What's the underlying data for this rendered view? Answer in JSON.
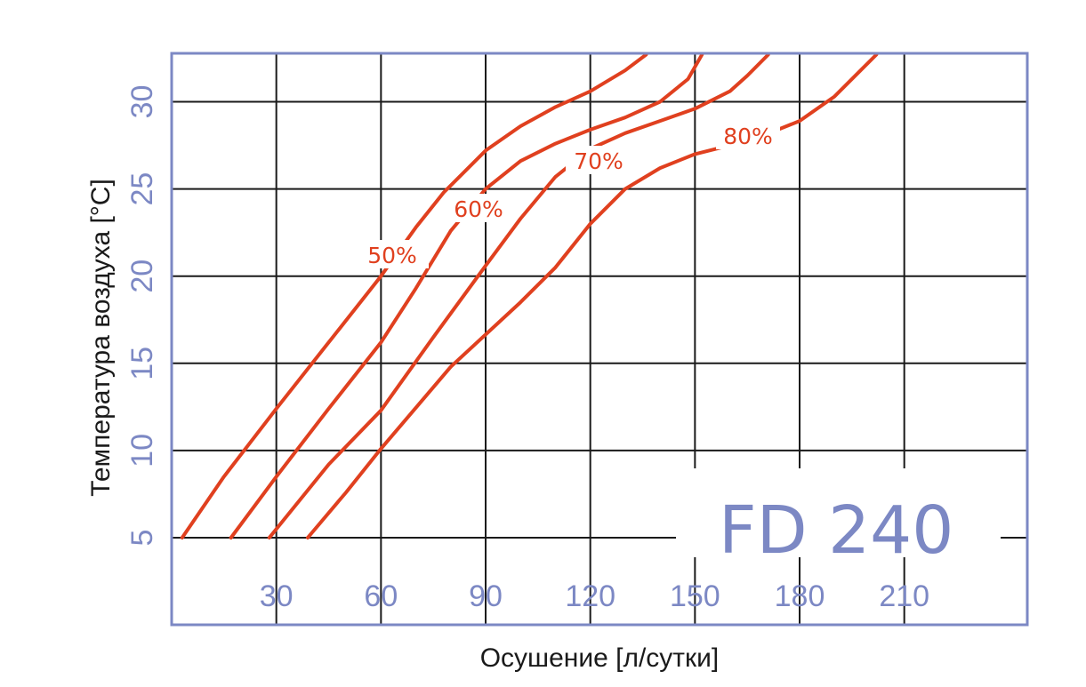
{
  "chart_data": {
    "type": "line",
    "title": "FD 240",
    "xlabel": "Осушение [л/сутки]",
    "ylabel": "Температура воздуха [°C]",
    "xlim": [
      0,
      240
    ],
    "ylim": [
      0,
      33
    ],
    "x_ticks": [
      30,
      60,
      90,
      120,
      150,
      180,
      210
    ],
    "y_ticks": [
      5,
      10,
      15,
      20,
      25,
      30
    ],
    "grid": true,
    "colors": {
      "frame": "#7c88c4",
      "curves": "#e0401f",
      "grid": "#1a1a1a"
    },
    "series": [
      {
        "name": "50%",
        "points": [
          [
            3,
            5
          ],
          [
            15,
            8.5
          ],
          [
            30,
            12.4
          ],
          [
            45,
            16.2
          ],
          [
            60,
            20
          ],
          [
            70,
            22.8
          ],
          [
            78,
            24.8
          ],
          [
            90,
            27.2
          ],
          [
            100,
            28.6
          ],
          [
            110,
            29.7
          ],
          [
            120,
            30.6
          ],
          [
            130,
            31.8
          ],
          [
            136,
            32.7
          ]
        ]
      },
      {
        "name": "60%",
        "points": [
          [
            17,
            5
          ],
          [
            30,
            8.5
          ],
          [
            45,
            12.4
          ],
          [
            60,
            16.2
          ],
          [
            70,
            19.3
          ],
          [
            80,
            22.6
          ],
          [
            90,
            25
          ],
          [
            100,
            26.6
          ],
          [
            110,
            27.6
          ],
          [
            120,
            28.4
          ],
          [
            130,
            29.1
          ],
          [
            140,
            30
          ],
          [
            148,
            31.3
          ],
          [
            152,
            32.7
          ]
        ]
      },
      {
        "name": "70%",
        "points": [
          [
            28,
            5
          ],
          [
            45,
            9.2
          ],
          [
            60,
            12.3
          ],
          [
            75,
            16.5
          ],
          [
            90,
            20.6
          ],
          [
            100,
            23.3
          ],
          [
            110,
            25.7
          ],
          [
            120,
            27.3
          ],
          [
            130,
            28.2
          ],
          [
            140,
            28.9
          ],
          [
            150,
            29.6
          ],
          [
            160,
            30.6
          ],
          [
            165,
            31.5
          ],
          [
            171,
            32.7
          ]
        ]
      },
      {
        "name": "80%",
        "points": [
          [
            39,
            5
          ],
          [
            50,
            7.6
          ],
          [
            60,
            10.1
          ],
          [
            80,
            14.8
          ],
          [
            100,
            18.5
          ],
          [
            110,
            20.5
          ],
          [
            120,
            23
          ],
          [
            130,
            25
          ],
          [
            140,
            26.2
          ],
          [
            150,
            27
          ],
          [
            160,
            27.5
          ],
          [
            170,
            28.1
          ],
          [
            180,
            28.9
          ],
          [
            190,
            30.3
          ],
          [
            197,
            31.7
          ],
          [
            202,
            32.7
          ]
        ]
      }
    ]
  }
}
